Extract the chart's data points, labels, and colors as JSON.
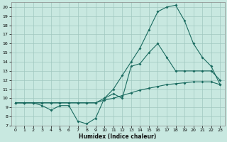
{
  "xlabel": "Humidex (Indice chaleur)",
  "bg_color": "#c8e8e0",
  "grid_color": "#a0c8c0",
  "line_color": "#1a6b60",
  "xlim": [
    -0.5,
    23.5
  ],
  "ylim": [
    7,
    20.5
  ],
  "xticks": [
    0,
    1,
    2,
    3,
    4,
    5,
    6,
    7,
    8,
    9,
    10,
    11,
    12,
    13,
    14,
    15,
    16,
    17,
    18,
    19,
    20,
    21,
    22,
    23
  ],
  "yticks": [
    7,
    8,
    9,
    10,
    11,
    12,
    13,
    14,
    15,
    16,
    17,
    18,
    19,
    20
  ],
  "lines": [
    {
      "x": [
        0,
        1,
        2,
        3,
        4,
        5,
        6,
        7,
        8,
        9,
        10,
        11,
        12,
        13,
        14,
        15,
        16,
        17,
        18,
        19,
        20,
        21,
        22,
        23
      ],
      "y": [
        9.5,
        9.5,
        9.5,
        9.5,
        9.5,
        9.5,
        9.5,
        9.5,
        9.5,
        9.5,
        9.8,
        10.0,
        10.3,
        10.6,
        10.9,
        11.1,
        11.3,
        11.5,
        11.6,
        11.7,
        11.8,
        11.8,
        11.8,
        11.5
      ]
    },
    {
      "x": [
        0,
        1,
        2,
        3,
        4,
        5,
        6,
        7,
        8,
        9,
        10,
        11,
        12,
        13,
        14,
        15,
        16,
        17,
        18,
        19,
        20,
        21,
        22,
        23
      ],
      "y": [
        9.5,
        9.5,
        9.5,
        9.5,
        9.5,
        9.5,
        9.5,
        9.5,
        9.5,
        9.5,
        10.0,
        11.0,
        12.5,
        14.0,
        15.5,
        17.5,
        19.5,
        20.0,
        20.2,
        18.5,
        16.0,
        14.5,
        13.5,
        11.5
      ]
    },
    {
      "x": [
        0,
        1,
        2,
        3,
        4,
        5,
        6,
        7,
        8,
        9,
        10,
        11,
        12,
        13,
        14,
        15,
        16,
        17,
        18,
        19,
        20,
        21,
        22,
        23
      ],
      "y": [
        9.5,
        9.5,
        9.5,
        9.2,
        8.7,
        9.2,
        9.2,
        7.5,
        7.2,
        7.8,
        10.0,
        10.5,
        10.0,
        13.5,
        13.8,
        15.0,
        16.0,
        14.5,
        13.0,
        13.0,
        13.0,
        13.0,
        13.0,
        12.0
      ]
    }
  ]
}
